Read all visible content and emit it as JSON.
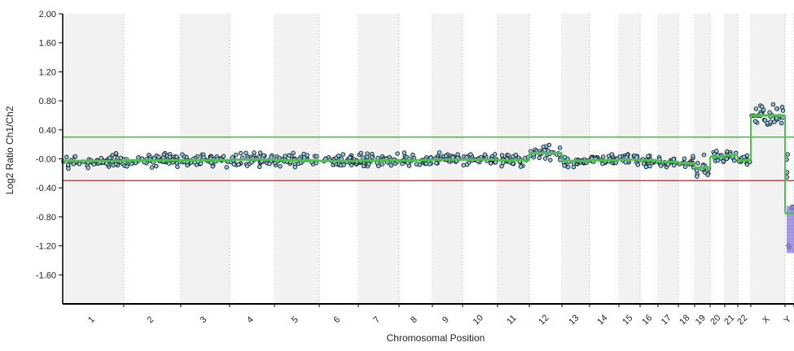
{
  "chart_data": {
    "type": "scatter",
    "title": "",
    "xlabel": "Chromosomal Position",
    "ylabel": "Log2 Ratio Ch1/Ch2",
    "ylim": [
      -2.0,
      2.0
    ],
    "yticks": [
      "2.00",
      "1.60",
      "1.20",
      "0.80",
      "0.40",
      "-0.00",
      "-0.40",
      "-0.80",
      "-1.20",
      "-1.60"
    ],
    "grid": false,
    "legend": "none",
    "chromosomes": [
      {
        "label": "1",
        "seg": -0.03,
        "noise": 0.05
      },
      {
        "label": "2",
        "seg": -0.02,
        "noise": 0.05
      },
      {
        "label": "3",
        "seg": -0.02,
        "noise": 0.05
      },
      {
        "label": "4",
        "seg": -0.01,
        "noise": 0.05
      },
      {
        "label": "5",
        "seg": -0.02,
        "noise": 0.05
      },
      {
        "label": "6",
        "seg": -0.03,
        "noise": 0.05
      },
      {
        "label": "7",
        "seg": -0.02,
        "noise": 0.05
      },
      {
        "label": "8",
        "seg": -0.02,
        "noise": 0.05
      },
      {
        "label": "9",
        "seg": -0.01,
        "noise": 0.05
      },
      {
        "label": "10",
        "seg": -0.01,
        "noise": 0.05
      },
      {
        "label": "11",
        "seg": -0.02,
        "noise": 0.05
      },
      {
        "label": "12",
        "seg": 0.08,
        "noise": 0.06
      },
      {
        "label": "13",
        "seg": -0.03,
        "noise": 0.05
      },
      {
        "label": "14",
        "seg": -0.02,
        "noise": 0.05
      },
      {
        "label": "15",
        "seg": -0.01,
        "noise": 0.05
      },
      {
        "label": "16",
        "seg": -0.02,
        "noise": 0.05
      },
      {
        "label": "17",
        "seg": -0.04,
        "noise": 0.05
      },
      {
        "label": "18",
        "seg": -0.06,
        "noise": 0.05
      },
      {
        "label": "19",
        "seg": -0.12,
        "noise": 0.08
      },
      {
        "label": "20",
        "seg": 0.03,
        "noise": 0.06
      },
      {
        "label": "21",
        "seg": 0.05,
        "noise": 0.06
      },
      {
        "label": "22",
        "seg": -0.02,
        "noise": 0.05
      },
      {
        "label": "X",
        "seg": 0.6,
        "noise": 0.08
      },
      {
        "label": "Y",
        "seg": -0.75,
        "noise": 0.3
      }
    ],
    "thresholds": [
      {
        "value": 0.3,
        "color": "#3f9a3f"
      },
      {
        "value": -0.3,
        "color": "#a83232"
      }
    ],
    "colors": {
      "band": "#f2f2f2",
      "point_fill": "#8ecae6",
      "point_stroke": "#1b1b1b",
      "segment": "#4cc34c",
      "y_segment_fill": "#8c7fd6"
    }
  }
}
